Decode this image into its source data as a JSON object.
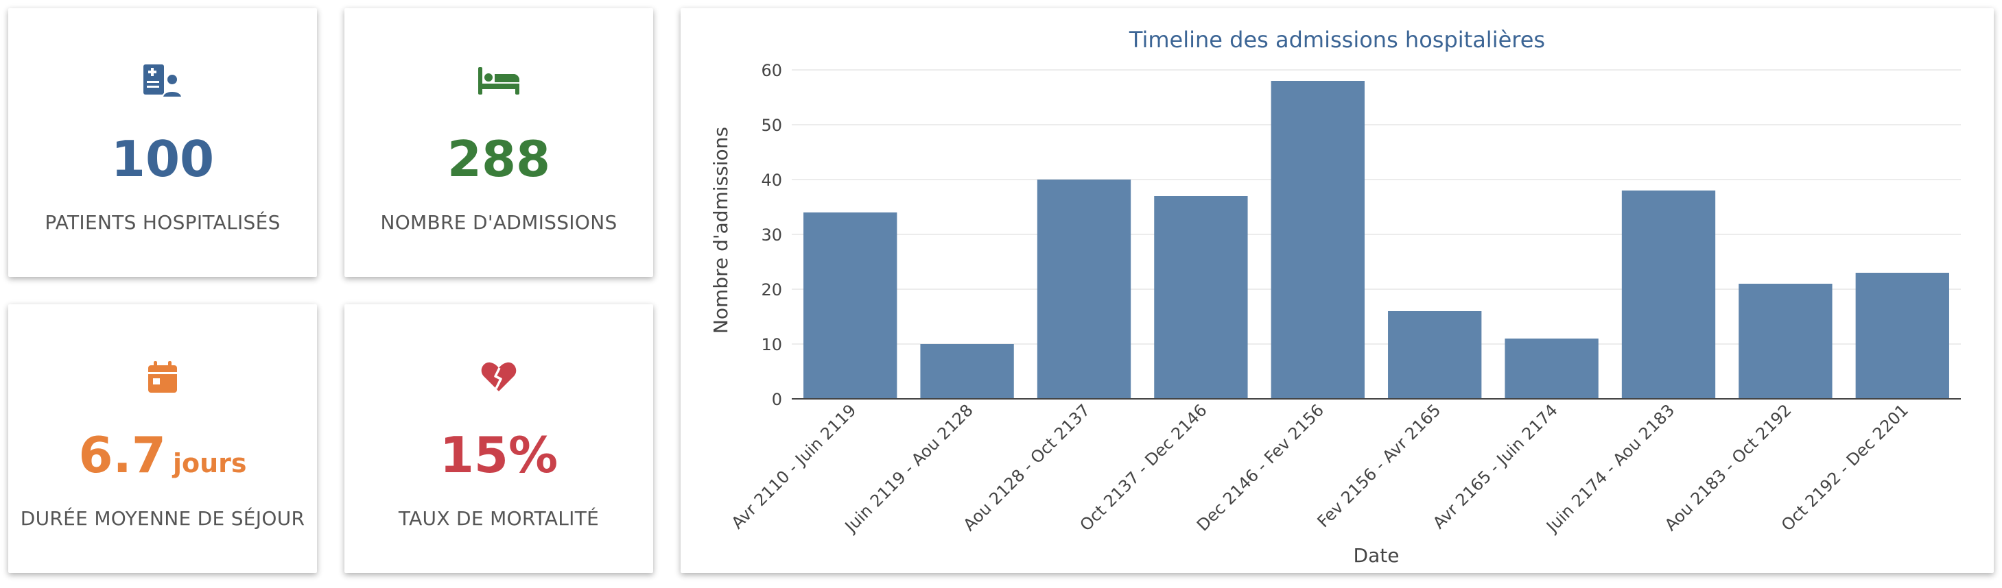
{
  "kpis": {
    "patients": {
      "icon": "patient-chart-icon",
      "value": "100",
      "label": "PATIENTS HOSPITALISÉS",
      "color": "#3c6595"
    },
    "admissions": {
      "icon": "hospital-bed-icon",
      "value": "288",
      "label": "NOMBRE D'ADMISSIONS",
      "color": "#3a7d3a"
    },
    "stay": {
      "icon": "calendar-icon",
      "value": "6.7",
      "unit": "jours",
      "label": "DURÉE MOYENNE DE SÉJOUR",
      "color": "#e8813a"
    },
    "mortality": {
      "icon": "broken-heart-icon",
      "value": "15%",
      "label": "TAUX DE MORTALITÉ",
      "color": "#c9414a"
    }
  },
  "chart_data": {
    "type": "bar",
    "title": "Timeline des admissions hospitalières",
    "xlabel": "Date",
    "ylabel": "Nombre d'admissions",
    "ylim": [
      0,
      60
    ],
    "yticks": [
      0,
      10,
      20,
      30,
      40,
      50,
      60
    ],
    "grid": true,
    "bar_color": "#5f84ab",
    "title_color": "#3c6595",
    "categories": [
      "Avr 2110 - Juin 2119",
      "Juin 2119 - Aou 2128",
      "Aou 2128 - Oct 2137",
      "Oct 2137 - Dec 2146",
      "Dec 2146 - Fev 2156",
      "Fev 2156 - Avr 2165",
      "Avr 2165 - Juin 2174",
      "Juin 2174 - Aou 2183",
      "Aou 2183 - Oct 2192",
      "Oct 2192 - Dec 2201"
    ],
    "values": [
      34,
      10,
      40,
      37,
      58,
      16,
      11,
      38,
      21,
      23
    ]
  }
}
